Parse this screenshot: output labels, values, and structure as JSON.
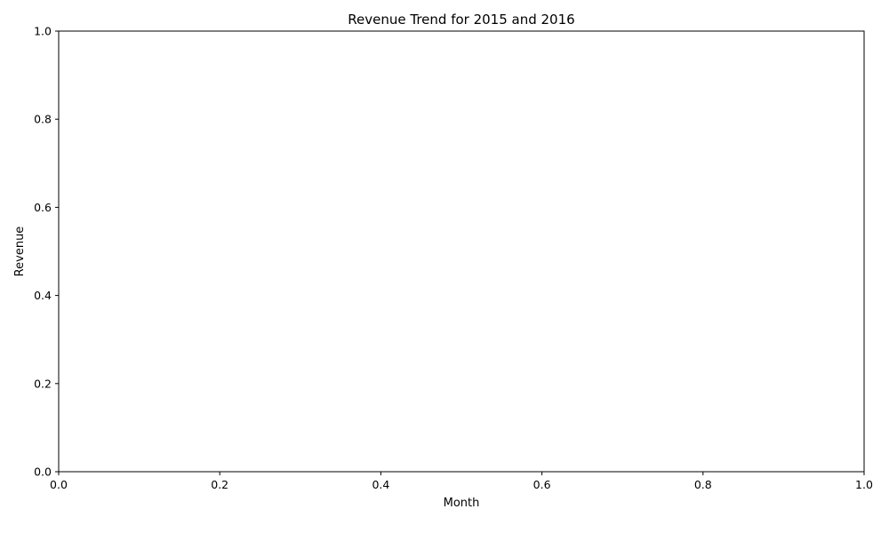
{
  "chart_data": {
    "type": "line",
    "title": "Revenue Trend for 2015 and 2016",
    "xlabel": "Month",
    "ylabel": "Revenue",
    "xlim": [
      0.0,
      1.0
    ],
    "ylim": [
      0.0,
      1.0
    ],
    "x_ticks": [
      "0.0",
      "0.2",
      "0.4",
      "0.6",
      "0.8",
      "1.0"
    ],
    "y_ticks": [
      "0.0",
      "0.2",
      "0.4",
      "0.6",
      "0.8",
      "1.0"
    ],
    "grid": false,
    "series": []
  }
}
